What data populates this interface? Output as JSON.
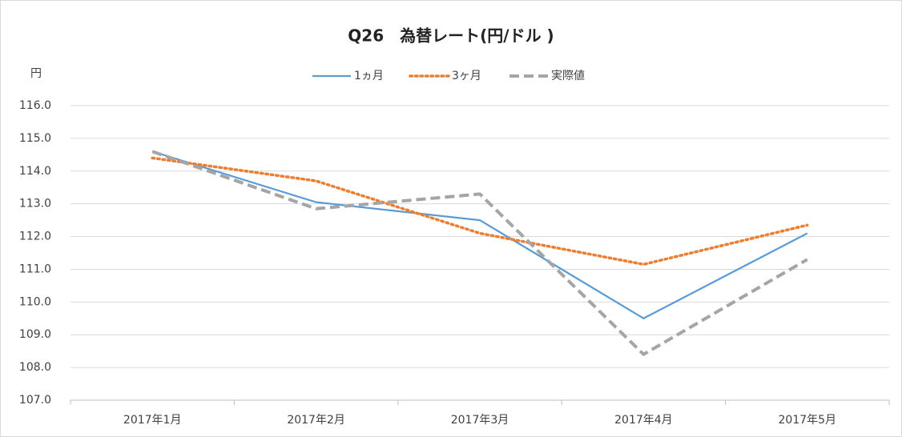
{
  "chart_data": {
    "type": "line",
    "title": "Q26　為替レート(円/ドル )",
    "y_label": "円",
    "categories": [
      "2017年1月",
      "2017年2月",
      "2017年3月",
      "2017年4月",
      "2017年5月"
    ],
    "series": [
      {
        "name": "1ヵ月",
        "color": "#5b9bd5",
        "style": "solid",
        "values": [
          114.6,
          113.05,
          112.5,
          109.5,
          112.1
        ]
      },
      {
        "name": "3ヶ月",
        "color": "#ed7d31",
        "style": "dotted",
        "values": [
          114.4,
          113.7,
          112.1,
          111.15,
          112.35
        ]
      },
      {
        "name": "実際値",
        "color": "#a5a5a5",
        "style": "dashed",
        "values": [
          114.6,
          112.85,
          113.3,
          108.4,
          111.3
        ]
      }
    ],
    "ylim": [
      107,
      116
    ],
    "yticks": [
      {
        "value": 107,
        "label": "107.0"
      },
      {
        "value": 108,
        "label": "108.0"
      },
      {
        "value": 109,
        "label": "109.0"
      },
      {
        "value": 110,
        "label": "110.0"
      },
      {
        "value": 111,
        "label": "111.0"
      },
      {
        "value": 112,
        "label": "112.0"
      },
      {
        "value": 113,
        "label": "113.0"
      },
      {
        "value": 114,
        "label": "114.0"
      },
      {
        "value": 115,
        "label": "115.0"
      },
      {
        "value": 116,
        "label": "116.0"
      }
    ],
    "grid": true,
    "legend": "top"
  }
}
